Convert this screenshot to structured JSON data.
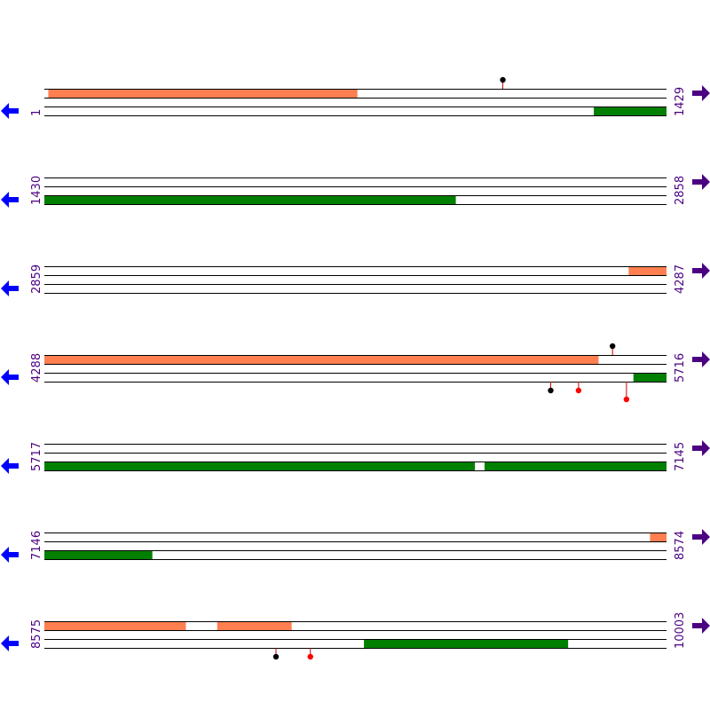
{
  "colors": {
    "background": "#ffffff",
    "track_line": "#000000",
    "forward_feature": "#ff7f50",
    "reverse_feature": "#007f00",
    "position_text": "#4b0082",
    "left_arrow": "#0000ff",
    "right_arrow": "#4b0082",
    "marker_black": "#000000",
    "marker_red": "#ff0000",
    "stem": "#cc0000"
  },
  "icons": {
    "left": "blue-left-arrow-icon",
    "right": "purple-right-arrow-icon"
  },
  "rows": [
    {
      "start": "1",
      "end": "1429",
      "start_bp": 1,
      "end_bp": 1429,
      "forward": [
        [
          10,
          719
        ]
      ],
      "reverse": [
        [
          1263,
          1429
        ]
      ],
      "markers": [
        {
          "bp": 1054,
          "side": "above",
          "color": "black",
          "level": 1
        }
      ]
    },
    {
      "start": "1430",
      "end": "2858",
      "start_bp": 1430,
      "end_bp": 2858,
      "forward": [],
      "reverse": [
        [
          1430,
          2374
        ]
      ],
      "markers": []
    },
    {
      "start": "2859",
      "end": "4287",
      "start_bp": 2859,
      "end_bp": 4287,
      "forward": [
        [
          4201,
          4287
        ]
      ],
      "reverse": [],
      "markers": []
    },
    {
      "start": "4288",
      "end": "5716",
      "start_bp": 4288,
      "end_bp": 5716,
      "forward": [
        [
          4288,
          5560
        ]
      ],
      "reverse": [
        [
          5641,
          5716
        ]
      ],
      "markers": [
        {
          "bp": 5593,
          "side": "above",
          "color": "black",
          "level": 1
        },
        {
          "bp": 5451,
          "side": "below",
          "color": "black",
          "level": 1
        },
        {
          "bp": 5515,
          "side": "below",
          "color": "red",
          "level": 1
        },
        {
          "bp": 5625,
          "side": "below",
          "color": "red",
          "level": 2
        }
      ]
    },
    {
      "start": "5717",
      "end": "7145",
      "start_bp": 5717,
      "end_bp": 7145,
      "forward": [],
      "reverse": [
        [
          5717,
          6705
        ],
        [
          6728,
          7145
        ]
      ],
      "markers": []
    },
    {
      "start": "7146",
      "end": "8574",
      "start_bp": 7146,
      "end_bp": 8574,
      "forward": [
        [
          8537,
          8574
        ]
      ],
      "reverse": [
        [
          7146,
          7393
        ]
      ],
      "markers": []
    },
    {
      "start": "8575",
      "end": "10003",
      "start_bp": 8575,
      "end_bp": 10003,
      "forward": [
        [
          8575,
          8899
        ],
        [
          8972,
          9142
        ]
      ],
      "reverse": [
        [
          9309,
          9777
        ]
      ],
      "markers": [
        {
          "bp": 9107,
          "side": "below",
          "color": "black",
          "level": 1
        },
        {
          "bp": 9186,
          "side": "below",
          "color": "red",
          "level": 1
        }
      ]
    }
  ]
}
